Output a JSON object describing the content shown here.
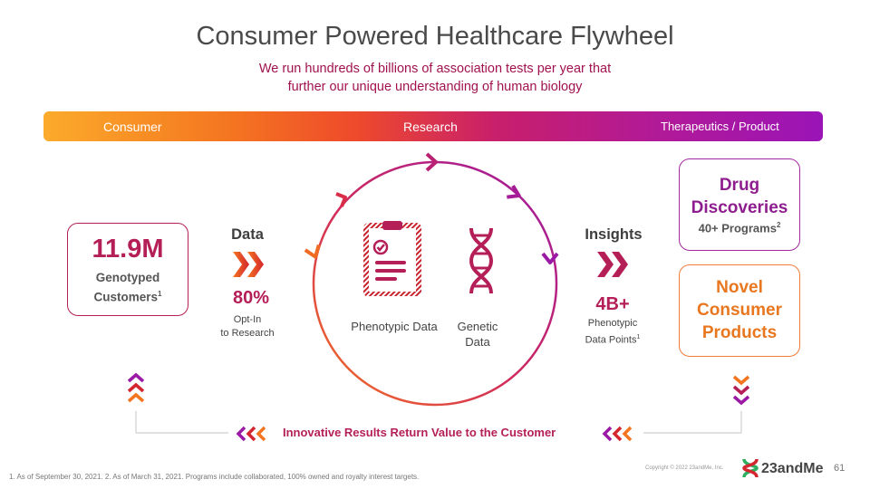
{
  "title": "Consumer Powered Healthcare Flywheel",
  "subtitle_line1": "We run hundreds of billions of association tests per year that",
  "subtitle_line2": "further our unique understanding of human biology",
  "band": {
    "consumer": "Consumer",
    "research": "Research",
    "therapeutics": "Therapeutics / Product"
  },
  "customers": {
    "value": "11.9M",
    "line1": "Genotyped",
    "line2": "Customers",
    "footnote_mark": "1"
  },
  "data_section": {
    "label": "Data",
    "percent": "80%",
    "line1": "Opt-In",
    "line2": "to Research"
  },
  "circle": {
    "phenotypic": "Phenotypic Data",
    "genetic_line1": "Genetic",
    "genetic_line2": "Data"
  },
  "insights": {
    "label": "Insights",
    "value": "4B+",
    "line1": "Phenotypic",
    "line2": "Data Points",
    "footnote_mark": "1"
  },
  "drug": {
    "line1": "Drug",
    "line2": "Discoveries",
    "sub": "40+ Programs",
    "footnote_mark": "2"
  },
  "novel": {
    "line1": "Novel",
    "line2": "Consumer",
    "line3": "Products"
  },
  "return_text": "Innovative Results Return Value to the Customer",
  "footnote": "1. As of September 30, 2021. 2. As of March 31, 2021. Programs include collaborated, 100% owned and royalty interest targets.",
  "copyright": "Copyright © 2022 23andMe, Inc.",
  "logo": "23andMe",
  "page_number": "61",
  "colors": {
    "magenta": "#b51f57",
    "purple": "#8e1d8e",
    "orange": "#e8771f"
  }
}
